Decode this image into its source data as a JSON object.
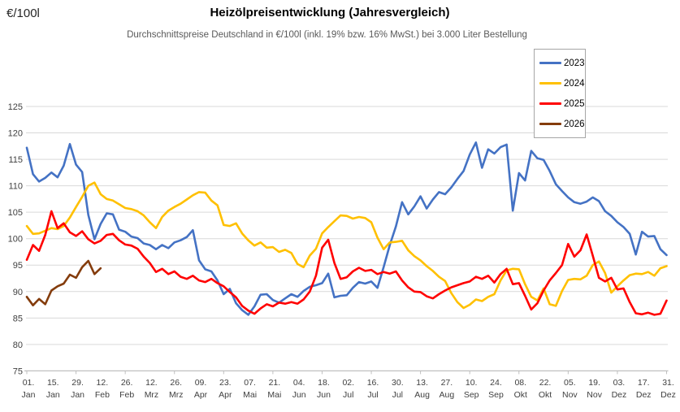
{
  "header": {
    "title": "Heizölpreisentwicklung (Jahresvergleich)",
    "subtitle": "Durchschnittspreise Deutschland in €/100l (inkl. 19% bzw. 16% MwSt.) bei 3.000 Liter Bestellung",
    "y_unit_label": "€/100l"
  },
  "colors": {
    "grid": "#d9d9d9",
    "axis": "#bfbfbf",
    "tick_text": "#404040",
    "background": "#ffffff"
  },
  "chart_data": {
    "type": "line",
    "title": "Heizölpreisentwicklung (Jahresvergleich)",
    "subtitle": "Durchschnittspreise Deutschland in €/100l (inkl. 19% bzw. 16% MwSt.) bei 3.000 Liter Bestellung",
    "ylabel": "€/100l",
    "ylim": [
      75,
      125
    ],
    "grid": true,
    "legend_position": "right",
    "y_axis": {
      "min": 75,
      "max": 125,
      "step": 5,
      "tick_labels": [
        "75",
        "80",
        "85",
        "90",
        "95",
        "100",
        "105",
        "110",
        "115",
        "120",
        "125"
      ]
    },
    "x_axis": {
      "tick_interval_days": 14,
      "tick_labels": [
        [
          "01.",
          "Jan"
        ],
        [
          "15.",
          "Jan"
        ],
        [
          "29.",
          "Jan"
        ],
        [
          "12.",
          "Feb"
        ],
        [
          "26.",
          "Feb"
        ],
        [
          "12.",
          "Mrz"
        ],
        [
          "26.",
          "Mrz"
        ],
        [
          "09.",
          "Apr"
        ],
        [
          "23.",
          "Apr"
        ],
        [
          "07.",
          "Mai"
        ],
        [
          "21.",
          "Mai"
        ],
        [
          "04.",
          "Jun"
        ],
        [
          "18.",
          "Jun"
        ],
        [
          "02.",
          "Jul"
        ],
        [
          "16.",
          "Jul"
        ],
        [
          "30.",
          "Jul"
        ],
        [
          "13.",
          "Aug"
        ],
        [
          "27.",
          "Aug"
        ],
        [
          "10.",
          "Sep"
        ],
        [
          "24.",
          "Sep"
        ],
        [
          "08.",
          "Okt"
        ],
        [
          "22.",
          "Okt"
        ],
        [
          "05.",
          "Nov"
        ],
        [
          "19.",
          "Nov"
        ],
        [
          "03.",
          "Dez"
        ],
        [
          "17.",
          "Dez"
        ],
        [
          "31.",
          "Dez"
        ]
      ]
    },
    "sampling": {
      "interval_days": 3.5,
      "start_day": 0,
      "total_days": 364
    },
    "series": [
      {
        "name": "2023",
        "color": "#4472C4",
        "values": [
          117.2,
          112.2,
          110.8,
          111.5,
          112.5,
          111.6,
          113.8,
          117.9,
          114.0,
          112.6,
          104.5,
          99.9,
          102.8,
          104.8,
          104.6,
          101.7,
          101.3,
          100.4,
          100.1,
          99.1,
          98.8,
          98.0,
          98.8,
          98.2,
          99.3,
          99.7,
          100.3,
          101.6,
          95.9,
          94.2,
          93.8,
          92.1,
          89.5,
          90.5,
          87.8,
          86.5,
          85.6,
          87.2,
          89.4,
          89.5,
          88.4,
          87.9,
          88.7,
          89.5,
          89.0,
          90.1,
          90.9,
          91.2,
          91.6,
          93.4,
          88.9,
          89.2,
          89.3,
          90.7,
          91.8,
          91.5,
          91.9,
          90.7,
          94.6,
          98.8,
          102.3,
          106.9,
          104.6,
          106.1,
          108.0,
          105.7,
          107.4,
          108.8,
          108.4,
          109.7,
          111.3,
          112.8,
          115.9,
          118.2,
          113.4,
          116.9,
          116.1,
          117.3,
          117.8,
          105.3,
          112.4,
          111.0,
          116.6,
          115.2,
          114.9,
          112.8,
          110.3,
          109.0,
          107.8,
          106.9,
          106.6,
          107.0,
          107.8,
          107.1,
          105.2,
          104.3,
          103.1,
          102.2,
          100.9,
          97.0,
          101.3,
          100.4,
          100.5,
          98.0,
          96.9
        ]
      },
      {
        "name": "2024",
        "color": "#FFC000",
        "values": [
          102.4,
          100.9,
          101.0,
          101.5,
          102.0,
          101.8,
          102.4,
          104.0,
          106.0,
          107.9,
          110.0,
          110.6,
          108.4,
          107.5,
          107.2,
          106.5,
          105.8,
          105.6,
          105.2,
          104.4,
          103.1,
          102.0,
          104.1,
          105.3,
          106.0,
          106.6,
          107.4,
          108.2,
          108.8,
          108.7,
          107.2,
          106.3,
          102.6,
          102.4,
          102.9,
          101.0,
          99.7,
          98.7,
          99.3,
          98.3,
          98.4,
          97.5,
          97.9,
          97.3,
          95.2,
          94.6,
          96.8,
          98.1,
          101.0,
          102.2,
          103.3,
          104.4,
          104.3,
          103.8,
          104.1,
          103.9,
          103.1,
          100.2,
          98.0,
          99.3,
          99.4,
          99.6,
          97.8,
          96.7,
          95.9,
          94.8,
          93.9,
          92.8,
          92.0,
          89.7,
          88.0,
          86.9,
          87.5,
          88.5,
          88.2,
          89.0,
          89.5,
          92.1,
          94.0,
          94.3,
          94.2,
          91.4,
          89.0,
          88.3,
          90.6,
          87.6,
          87.3,
          90.1,
          92.2,
          92.4,
          92.3,
          93.0,
          95.0,
          95.7,
          93.5,
          89.8,
          91.0,
          92.1,
          93.1,
          93.4,
          93.3,
          93.7,
          93.0,
          94.4,
          94.8
        ]
      },
      {
        "name": "2025",
        "color": "#FF0000",
        "values": [
          96.0,
          98.8,
          97.7,
          100.7,
          105.2,
          102.0,
          102.9,
          101.2,
          100.5,
          101.4,
          99.9,
          99.1,
          99.6,
          100.7,
          100.9,
          99.7,
          98.9,
          98.7,
          98.1,
          96.6,
          95.4,
          93.7,
          94.3,
          93.3,
          93.8,
          92.8,
          92.4,
          93.0,
          92.1,
          91.8,
          92.4,
          91.6,
          91.0,
          89.9,
          88.9,
          87.3,
          86.4,
          85.8,
          86.8,
          87.6,
          87.2,
          87.9,
          87.7,
          88.0,
          87.7,
          88.5,
          90.0,
          93.0,
          98.3,
          99.8,
          95.4,
          92.4,
          92.7,
          93.8,
          94.5,
          93.9,
          94.1,
          93.3,
          93.7,
          93.4,
          93.8,
          92.1,
          90.8,
          90.0,
          89.9,
          89.1,
          88.7,
          89.5,
          90.2,
          90.8,
          91.2,
          91.6,
          91.9,
          92.8,
          92.4,
          93.0,
          91.7,
          93.3,
          94.3,
          91.4,
          91.6,
          89.2,
          86.6,
          87.8,
          90.2,
          92.1,
          93.5,
          95.0,
          99.0,
          96.6,
          97.8,
          100.8,
          96.8,
          92.6,
          91.9,
          92.6,
          90.4,
          90.6,
          88.0,
          85.9,
          85.7,
          86.0,
          85.6,
          85.8,
          88.3
        ]
      },
      {
        "name": "2026",
        "color": "#843C0C",
        "values": [
          89.0,
          87.4,
          88.6,
          87.6,
          90.2,
          91.0,
          91.5,
          93.2,
          92.6,
          94.6,
          95.8,
          93.3,
          94.4
        ]
      }
    ]
  }
}
